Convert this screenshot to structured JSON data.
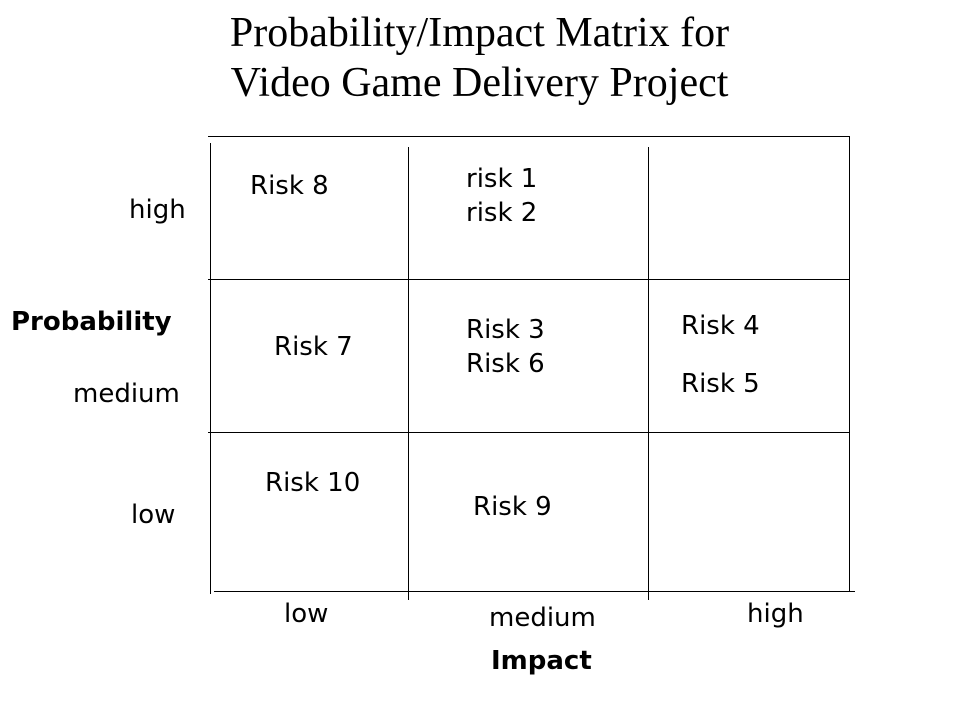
{
  "title": {
    "line1": "Probability/Impact Matrix for",
    "line2": "Video Game Delivery Project"
  },
  "y_axis": {
    "label": "Probability",
    "levels": {
      "high": "high",
      "medium": "medium",
      "low": "low"
    }
  },
  "x_axis": {
    "label": "Impact",
    "levels": {
      "low": "low",
      "medium": "medium",
      "high": "high"
    }
  },
  "cells": {
    "high_low": [
      "Risk 8"
    ],
    "high_medium": [
      "risk 1",
      "risk 2"
    ],
    "high_high": [],
    "medium_low": [
      "Risk 7"
    ],
    "medium_medium": [
      "Risk 3",
      "Risk 6"
    ],
    "medium_high": [
      "Risk 4",
      "Risk 5"
    ],
    "low_low": [
      "Risk 10"
    ],
    "low_medium": [
      "Risk 9"
    ],
    "low_high": []
  }
}
